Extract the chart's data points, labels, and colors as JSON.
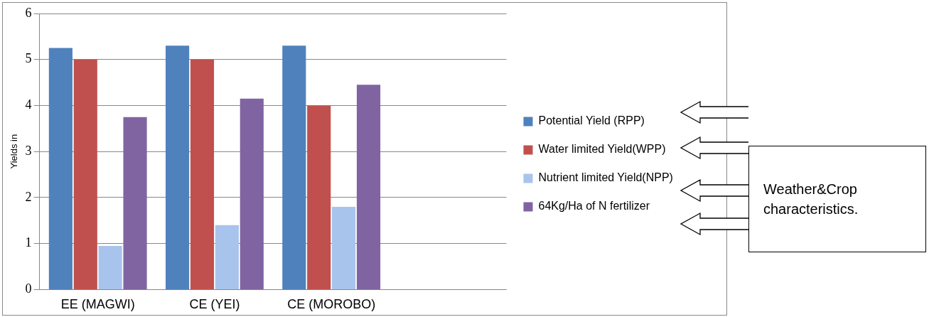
{
  "chart_data": {
    "type": "bar",
    "ylabel": "Yields in",
    "categories": [
      "EE (MAGWI)",
      "CE (YEI)",
      "CE (MOROBO)",
      null
    ],
    "series": [
      {
        "name": "Potential Yield (RPP)",
        "color": "#4f81bd",
        "values": [
          5.25,
          5.3,
          5.3,
          null
        ]
      },
      {
        "name": "Water limited Yield(WPP)",
        "color": "#c0504d",
        "values": [
          5.0,
          5.0,
          4.0,
          null
        ]
      },
      {
        "name": "Nutrient limited Yield(NPP)",
        "color": "#a9c4ec",
        "values": [
          0.95,
          1.4,
          1.8,
          null
        ]
      },
      {
        "name": "64Kg/Ha of N fertilizer",
        "color": "#8064a2",
        "values": [
          3.75,
          4.15,
          4.45,
          null
        ]
      }
    ],
    "ylim": [
      0,
      6
    ],
    "yticks": [
      0,
      1,
      2,
      3,
      4,
      5,
      6
    ],
    "grid": "y",
    "legend": "right",
    "annotations": [
      "Weather&Crop characteristics."
    ]
  }
}
